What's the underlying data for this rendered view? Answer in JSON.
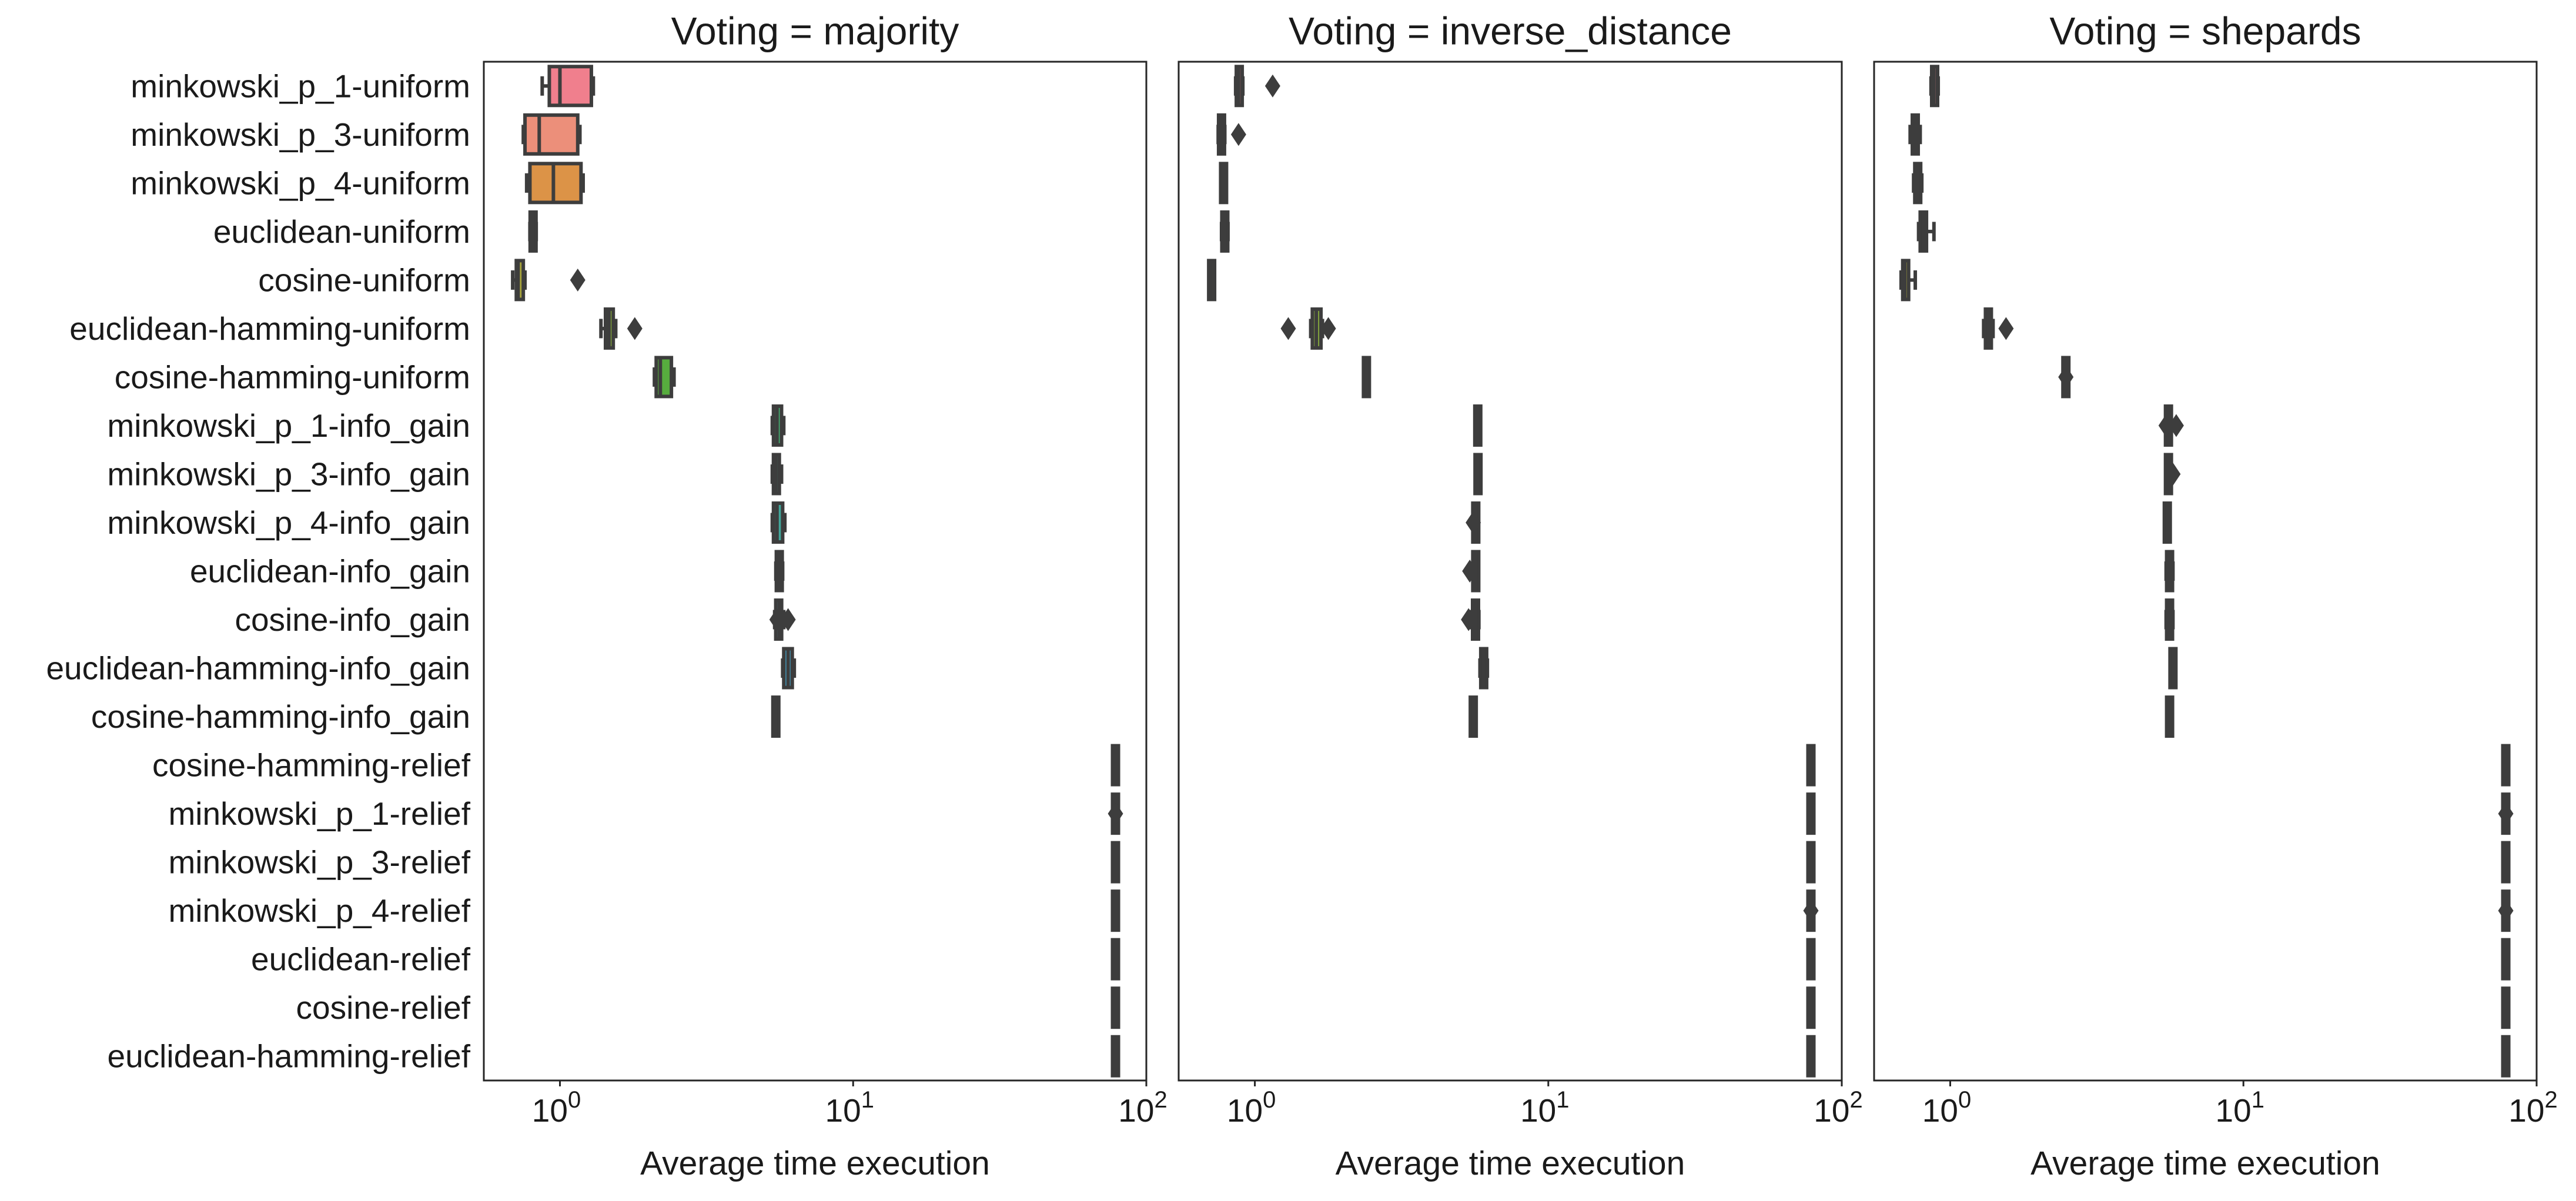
{
  "chart_data": {
    "type": "box",
    "xscale": "log",
    "xlim": [
      0.55,
      100
    ],
    "xticks": [
      {
        "value": 1,
        "base": "10",
        "exp": "0"
      },
      {
        "value": 10,
        "base": "10",
        "exp": "1"
      },
      {
        "value": 100,
        "base": "10",
        "exp": "2"
      }
    ],
    "xlabel": "Average time execution",
    "grid": false,
    "categories": [
      "minkowski_p_1-uniform",
      "minkowski_p_3-uniform",
      "minkowski_p_4-uniform",
      "euclidean-uniform",
      "cosine-uniform",
      "euclidean-hamming-uniform",
      "cosine-hamming-uniform",
      "minkowski_p_1-info_gain",
      "minkowski_p_3-info_gain",
      "minkowski_p_4-info_gain",
      "euclidean-info_gain",
      "cosine-info_gain",
      "euclidean-hamming-info_gain",
      "cosine-hamming-info_gain",
      "cosine-hamming-relief",
      "minkowski_p_1-relief",
      "minkowski_p_3-relief",
      "minkowski_p_4-relief",
      "euclidean-relief",
      "cosine-relief",
      "euclidean-hamming-relief"
    ],
    "colors": [
      "#f07f8d",
      "#ec8f7a",
      "#dc9347",
      "#c09e3c",
      "#a9a53b",
      "#86ab3d",
      "#57ad3e",
      "#44aa6e",
      "#44a98b",
      "#42a79b",
      "#41a5a8",
      "#42a4b6",
      "#45a1c6",
      "#5d9ad9",
      "#8c8fe4",
      "#ae82e6",
      "#c977e4",
      "#e06ed4",
      "#ec6cbf",
      "#f06ea8",
      "#f27296"
    ],
    "panels": [
      {
        "title": "Voting = majority",
        "boxes": [
          {
            "min": 0.87,
            "q1": 0.92,
            "median": 1.0,
            "q3": 1.28,
            "max": 1.3,
            "outliers": []
          },
          {
            "min": 0.75,
            "q1": 0.76,
            "median": 0.85,
            "q3": 1.15,
            "max": 1.17,
            "outliers": []
          },
          {
            "min": 0.77,
            "q1": 0.79,
            "median": 0.95,
            "q3": 1.18,
            "max": 1.2,
            "outliers": []
          },
          {
            "min": 0.79,
            "q1": 0.8,
            "median": 0.81,
            "q3": 0.82,
            "max": 0.83,
            "outliers": []
          },
          {
            "min": 0.69,
            "q1": 0.71,
            "median": 0.72,
            "q3": 0.75,
            "max": 0.76,
            "outliers": [
              1.15
            ]
          },
          {
            "min": 1.38,
            "q1": 1.43,
            "median": 1.47,
            "q3": 1.52,
            "max": 1.55,
            "outliers": [
              1.8
            ]
          },
          {
            "min": 2.1,
            "q1": 2.13,
            "median": 2.2,
            "q3": 2.4,
            "max": 2.45,
            "outliers": []
          },
          {
            "min": 5.3,
            "q1": 5.35,
            "median": 5.5,
            "q3": 5.7,
            "max": 5.8,
            "outliers": []
          },
          {
            "min": 5.3,
            "q1": 5.35,
            "median": 5.45,
            "q3": 5.6,
            "max": 5.7,
            "outliers": []
          },
          {
            "min": 5.3,
            "q1": 5.35,
            "median": 5.5,
            "q3": 5.75,
            "max": 5.85,
            "outliers": []
          },
          {
            "min": 5.45,
            "q1": 5.5,
            "median": 5.6,
            "q3": 5.7,
            "max": 5.75,
            "outliers": []
          },
          {
            "min": 5.4,
            "q1": 5.45,
            "median": 5.6,
            "q3": 5.7,
            "max": 5.8,
            "outliers": [
              5.5,
              6.0
            ]
          },
          {
            "min": 5.75,
            "q1": 5.8,
            "median": 6.0,
            "q3": 6.2,
            "max": 6.3,
            "outliers": []
          },
          {
            "min": 5.35,
            "q1": 5.4,
            "median": 5.45,
            "q3": 5.5,
            "max": 5.55,
            "outliers": []
          },
          {
            "min": 77.5,
            "q1": 78.0,
            "median": 78.5,
            "q3": 79.0,
            "max": 79.5,
            "outliers": []
          },
          {
            "min": 77.5,
            "q1": 78.0,
            "median": 78.5,
            "q3": 79.0,
            "max": 79.5,
            "outliers": [
              78.5
            ]
          },
          {
            "min": 77.5,
            "q1": 78.0,
            "median": 78.5,
            "q3": 79.0,
            "max": 79.5,
            "outliers": []
          },
          {
            "min": 77.5,
            "q1": 78.0,
            "median": 78.5,
            "q3": 79.0,
            "max": 79.5,
            "outliers": []
          },
          {
            "min": 77.5,
            "q1": 78.0,
            "median": 78.5,
            "q3": 79.0,
            "max": 79.5,
            "outliers": []
          },
          {
            "min": 77.5,
            "q1": 78.0,
            "median": 78.5,
            "q3": 79.0,
            "max": 79.5,
            "outliers": []
          },
          {
            "min": 77.5,
            "q1": 78.0,
            "median": 78.5,
            "q3": 79.0,
            "max": 79.5,
            "outliers": []
          }
        ]
      },
      {
        "title": "Voting = inverse_distance",
        "boxes": [
          {
            "min": 0.86,
            "q1": 0.87,
            "median": 0.88,
            "q3": 0.9,
            "max": 0.91,
            "outliers": [
              1.15
            ]
          },
          {
            "min": 0.75,
            "q1": 0.76,
            "median": 0.77,
            "q3": 0.78,
            "max": 0.79,
            "outliers": [
              0.88
            ]
          },
          {
            "min": 0.77,
            "q1": 0.775,
            "median": 0.78,
            "q3": 0.79,
            "max": 0.795,
            "outliers": []
          },
          {
            "min": 0.77,
            "q1": 0.78,
            "median": 0.79,
            "q3": 0.8,
            "max": 0.81,
            "outliers": []
          },
          {
            "min": 0.7,
            "q1": 0.705,
            "median": 0.71,
            "q3": 0.72,
            "max": 0.725,
            "outliers": []
          },
          {
            "min": 1.55,
            "q1": 1.57,
            "median": 1.62,
            "q3": 1.68,
            "max": 1.7,
            "outliers": [
              1.3,
              1.78
            ]
          },
          {
            "min": 2.35,
            "q1": 2.37,
            "median": 2.4,
            "q3": 2.43,
            "max": 2.45,
            "outliers": []
          },
          {
            "min": 5.7,
            "q1": 5.72,
            "median": 5.75,
            "q3": 5.78,
            "max": 5.8,
            "outliers": []
          },
          {
            "min": 5.68,
            "q1": 5.7,
            "median": 5.75,
            "q3": 5.82,
            "max": 5.85,
            "outliers": []
          },
          {
            "min": 5.55,
            "q1": 5.6,
            "median": 5.65,
            "q3": 5.72,
            "max": 5.75,
            "outliers": [
              5.55
            ]
          },
          {
            "min": 5.55,
            "q1": 5.6,
            "median": 5.65,
            "q3": 5.72,
            "max": 5.75,
            "outliers": [
              5.4
            ]
          },
          {
            "min": 5.45,
            "q1": 5.55,
            "median": 5.65,
            "q3": 5.75,
            "max": 5.8,
            "outliers": [
              5.35
            ]
          },
          {
            "min": 5.85,
            "q1": 5.9,
            "median": 6.0,
            "q3": 6.15,
            "max": 6.2,
            "outliers": []
          },
          {
            "min": 5.5,
            "q1": 5.52,
            "median": 5.55,
            "q3": 5.58,
            "max": 5.6,
            "outliers": []
          },
          {
            "min": 77.5,
            "q1": 78.0,
            "median": 78.5,
            "q3": 79.0,
            "max": 79.5,
            "outliers": []
          },
          {
            "min": 77.5,
            "q1": 78.0,
            "median": 78.5,
            "q3": 79.0,
            "max": 79.5,
            "outliers": []
          },
          {
            "min": 77.5,
            "q1": 78.0,
            "median": 78.5,
            "q3": 79.0,
            "max": 79.5,
            "outliers": []
          },
          {
            "min": 77.5,
            "q1": 78.0,
            "median": 78.5,
            "q3": 79.0,
            "max": 79.5,
            "outliers": [
              78.5
            ]
          },
          {
            "min": 77.5,
            "q1": 78.0,
            "median": 78.5,
            "q3": 79.0,
            "max": 79.5,
            "outliers": []
          },
          {
            "min": 77.5,
            "q1": 78.0,
            "median": 78.5,
            "q3": 79.0,
            "max": 79.5,
            "outliers": []
          },
          {
            "min": 77.5,
            "q1": 78.0,
            "median": 78.5,
            "q3": 79.0,
            "max": 79.5,
            "outliers": []
          }
        ]
      },
      {
        "title": "Voting = shepards",
        "boxes": [
          {
            "min": 0.86,
            "q1": 0.87,
            "median": 0.88,
            "q3": 0.9,
            "max": 0.91,
            "outliers": []
          },
          {
            "min": 0.73,
            "q1": 0.75,
            "median": 0.76,
            "q3": 0.77,
            "max": 0.79,
            "outliers": []
          },
          {
            "min": 0.75,
            "q1": 0.76,
            "median": 0.775,
            "q3": 0.79,
            "max": 0.8,
            "outliers": []
          },
          {
            "min": 0.78,
            "q1": 0.79,
            "median": 0.81,
            "q3": 0.83,
            "max": 0.88,
            "outliers": []
          },
          {
            "min": 0.68,
            "q1": 0.69,
            "median": 0.7,
            "q3": 0.72,
            "max": 0.76,
            "outliers": []
          },
          {
            "min": 1.3,
            "q1": 1.32,
            "median": 1.35,
            "q3": 1.38,
            "max": 1.4,
            "outliers": [
              1.55
            ]
          },
          {
            "min": 2.45,
            "q1": 2.46,
            "median": 2.48,
            "q3": 2.5,
            "max": 2.52,
            "outliers": [
              2.48
            ]
          },
          {
            "min": 5.45,
            "q1": 5.5,
            "median": 5.55,
            "q3": 5.6,
            "max": 5.65,
            "outliers": [
              5.45,
              5.9
            ]
          },
          {
            "min": 5.45,
            "q1": 5.5,
            "median": 5.55,
            "q3": 5.6,
            "max": 5.65,
            "outliers": [
              5.75
            ]
          },
          {
            "min": 5.45,
            "q1": 5.47,
            "median": 5.5,
            "q3": 5.53,
            "max": 5.55,
            "outliers": []
          },
          {
            "min": 5.45,
            "q1": 5.5,
            "median": 5.6,
            "q3": 5.7,
            "max": 5.75,
            "outliers": []
          },
          {
            "min": 5.45,
            "q1": 5.5,
            "median": 5.6,
            "q3": 5.7,
            "max": 5.75,
            "outliers": []
          },
          {
            "min": 5.7,
            "q1": 5.72,
            "median": 5.75,
            "q3": 5.78,
            "max": 5.8,
            "outliers": []
          },
          {
            "min": 5.55,
            "q1": 5.57,
            "median": 5.6,
            "q3": 5.63,
            "max": 5.65,
            "outliers": []
          },
          {
            "min": 77.5,
            "q1": 78.0,
            "median": 78.5,
            "q3": 79.0,
            "max": 79.5,
            "outliers": []
          },
          {
            "min": 77.5,
            "q1": 78.0,
            "median": 78.5,
            "q3": 79.0,
            "max": 79.5,
            "outliers": [
              78.5
            ]
          },
          {
            "min": 77.5,
            "q1": 78.0,
            "median": 78.5,
            "q3": 79.0,
            "max": 79.5,
            "outliers": []
          },
          {
            "min": 77.5,
            "q1": 78.0,
            "median": 78.5,
            "q3": 79.0,
            "max": 79.5,
            "outliers": [
              78.5
            ]
          },
          {
            "min": 77.5,
            "q1": 78.0,
            "median": 78.5,
            "q3": 79.0,
            "max": 79.5,
            "outliers": []
          },
          {
            "min": 77.5,
            "q1": 78.0,
            "median": 78.5,
            "q3": 79.0,
            "max": 79.5,
            "outliers": []
          },
          {
            "min": 77.5,
            "q1": 78.0,
            "median": 78.5,
            "q3": 79.0,
            "max": 79.5,
            "outliers": []
          }
        ]
      }
    ]
  }
}
